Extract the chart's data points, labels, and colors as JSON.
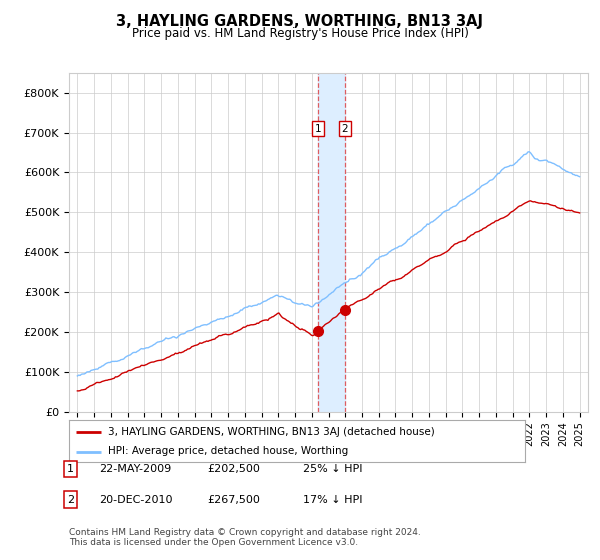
{
  "title": "3, HAYLING GARDENS, WORTHING, BN13 3AJ",
  "subtitle": "Price paid vs. HM Land Registry's House Price Index (HPI)",
  "legend_line1": "3, HAYLING GARDENS, WORTHING, BN13 3AJ (detached house)",
  "legend_line2": "HPI: Average price, detached house, Worthing",
  "transaction1_label": "1",
  "transaction1_date": "22-MAY-2009",
  "transaction1_price": "£202,500",
  "transaction1_hpi": "25% ↓ HPI",
  "transaction2_label": "2",
  "transaction2_date": "20-DEC-2010",
  "transaction2_price": "£267,500",
  "transaction2_hpi": "17% ↓ HPI",
  "footnote": "Contains HM Land Registry data © Crown copyright and database right 2024.\nThis data is licensed under the Open Government Licence v3.0.",
  "ylim": [
    0,
    850000
  ],
  "yticks": [
    0,
    100000,
    200000,
    300000,
    400000,
    500000,
    600000,
    700000,
    800000
  ],
  "ytick_labels": [
    "£0",
    "£100K",
    "£200K",
    "£300K",
    "£400K",
    "£500K",
    "£600K",
    "£700K",
    "£800K"
  ],
  "red_line_color": "#cc0000",
  "blue_line_color": "#7fbfff",
  "marker_color": "#cc0000",
  "shading_color": "#ddeeff",
  "grid_color": "#cccccc",
  "transaction1_x": 2009.39,
  "transaction2_x": 2010.97,
  "background_color": "#ffffff",
  "xlim": [
    1994.5,
    2025.5
  ]
}
